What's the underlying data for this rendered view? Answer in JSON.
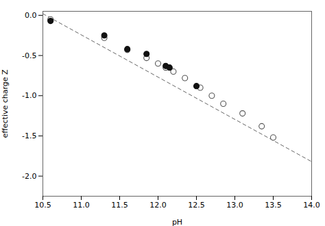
{
  "chart_data": {
    "type": "scatter",
    "xlabel": "pH",
    "ylabel": "effective charge Z",
    "xlim": [
      10.5,
      14.0
    ],
    "ylim": [
      -2.25,
      0.05
    ],
    "xticks": [
      10.5,
      {
        "value": 11.0,
        "label": "11.0"
      },
      11.5,
      {
        "value": 12.0,
        "label": "12.0"
      },
      12.5,
      {
        "value": 13.0,
        "label": "13.0"
      },
      13.5,
      {
        "value": 14.0,
        "label": "14.0"
      }
    ],
    "yticks": [
      {
        "value": 0.0,
        "label": "0.0"
      },
      -0.5,
      {
        "value": -1.0,
        "label": "-1.0"
      },
      -1.5,
      {
        "value": -2.0,
        "label": "-2.0"
      }
    ],
    "grid": false,
    "series": [
      {
        "type": "scatter",
        "marker": "open",
        "color": "#555555",
        "x": [
          10.6,
          11.3,
          11.6,
          11.85,
          12.0,
          12.1,
          12.2,
          12.35,
          12.55,
          12.7,
          12.85,
          13.1,
          13.35,
          13.5
        ],
        "values": [
          -0.05,
          -0.28,
          -0.43,
          -0.53,
          -0.6,
          -0.65,
          -0.7,
          -0.78,
          -0.9,
          -1.0,
          -1.1,
          -1.22,
          -1.38,
          -1.52
        ]
      },
      {
        "type": "scatter",
        "marker": "filled",
        "color": "#111111",
        "x": [
          10.6,
          11.3,
          11.6,
          11.85,
          12.1,
          12.15,
          12.5
        ],
        "values": [
          -0.07,
          -0.25,
          -0.42,
          -0.48,
          -0.63,
          -0.65,
          -0.88
        ]
      },
      {
        "type": "line",
        "line_style": "dashed",
        "color": "#666666",
        "x": [
          10.5,
          14.0
        ],
        "values": [
          0.02,
          -1.82
        ]
      }
    ]
  }
}
